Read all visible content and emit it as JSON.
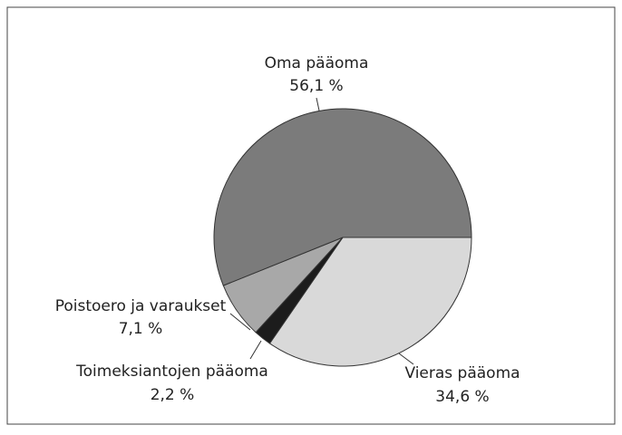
{
  "chart_data": {
    "type": "pie",
    "categories": [
      "Vieras pääoma",
      "Toimeksiantojen pääoma",
      "Poistoero ja varaukset",
      "Oma pääoma"
    ],
    "values": [
      34.6,
      2.2,
      7.1,
      56.1
    ],
    "value_labels": [
      "34,6 %",
      "2,2 %",
      "7,1 %",
      "56,1 %"
    ],
    "colors": [
      "#d9d9d9",
      "#1c1c1c",
      "#a8a8a8",
      "#7b7b7b"
    ]
  }
}
